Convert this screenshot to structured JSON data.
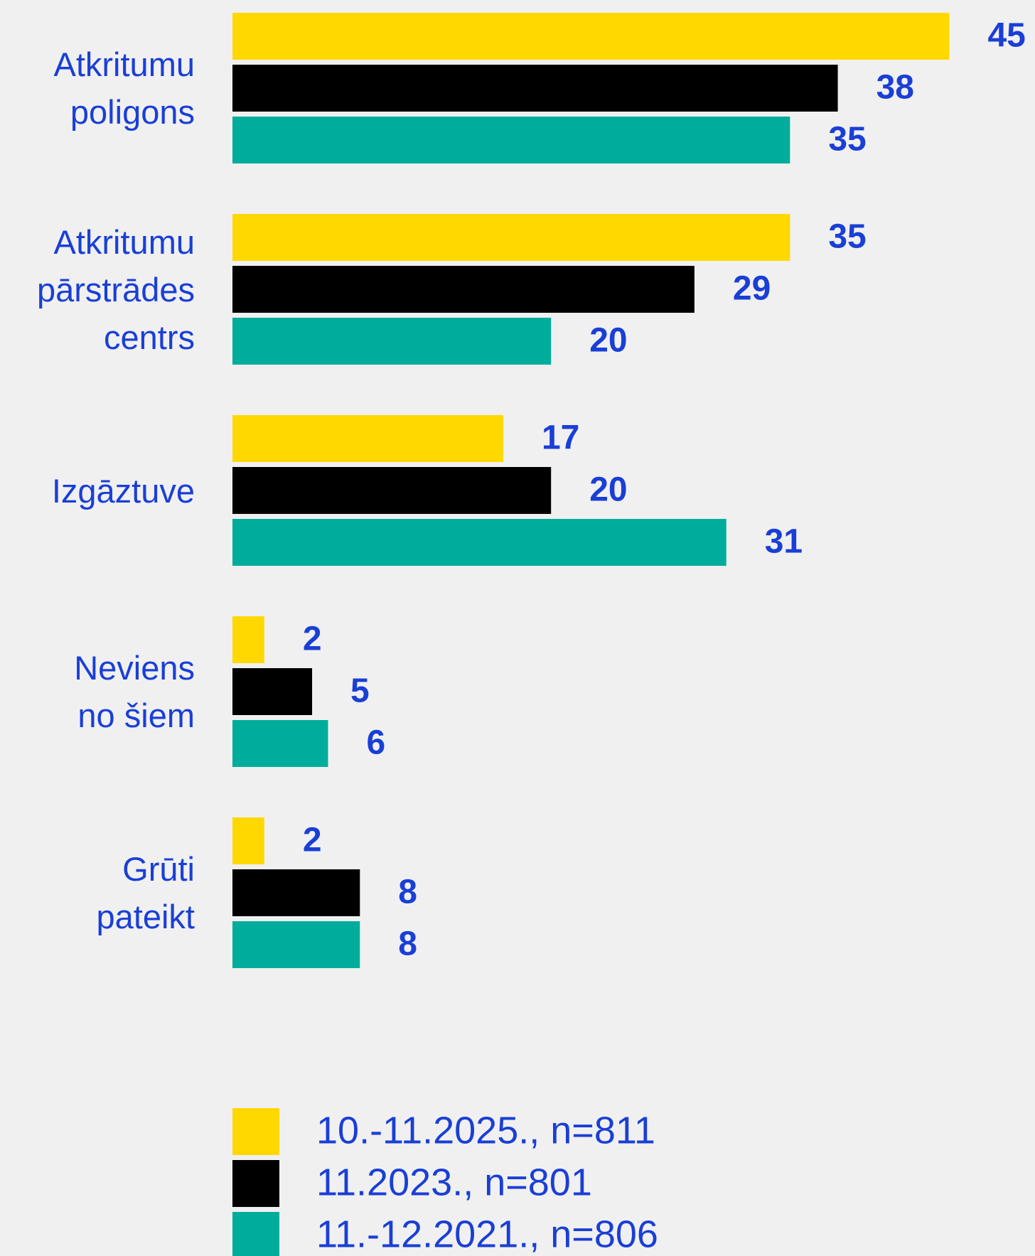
{
  "chart_data": {
    "type": "bar",
    "orientation": "horizontal",
    "categories": [
      "Atkritumu\npoligons",
      "Atkritumu\npārstrādes\ncentrs",
      "Izgāztuve",
      "Neviens\nno šiem",
      "Grūti\npateikt"
    ],
    "series": [
      {
        "name": "10.-11.2025., n=811",
        "color": "#ffd800",
        "values": [
          45,
          35,
          17,
          2,
          2
        ]
      },
      {
        "name": "11.2023., n=801",
        "color": "#000000",
        "values": [
          38,
          29,
          20,
          5,
          8
        ]
      },
      {
        "name": "11.-12.2021., n=806",
        "color": "#00ad9c",
        "values": [
          35,
          20,
          31,
          6,
          8
        ]
      }
    ]
  }
}
